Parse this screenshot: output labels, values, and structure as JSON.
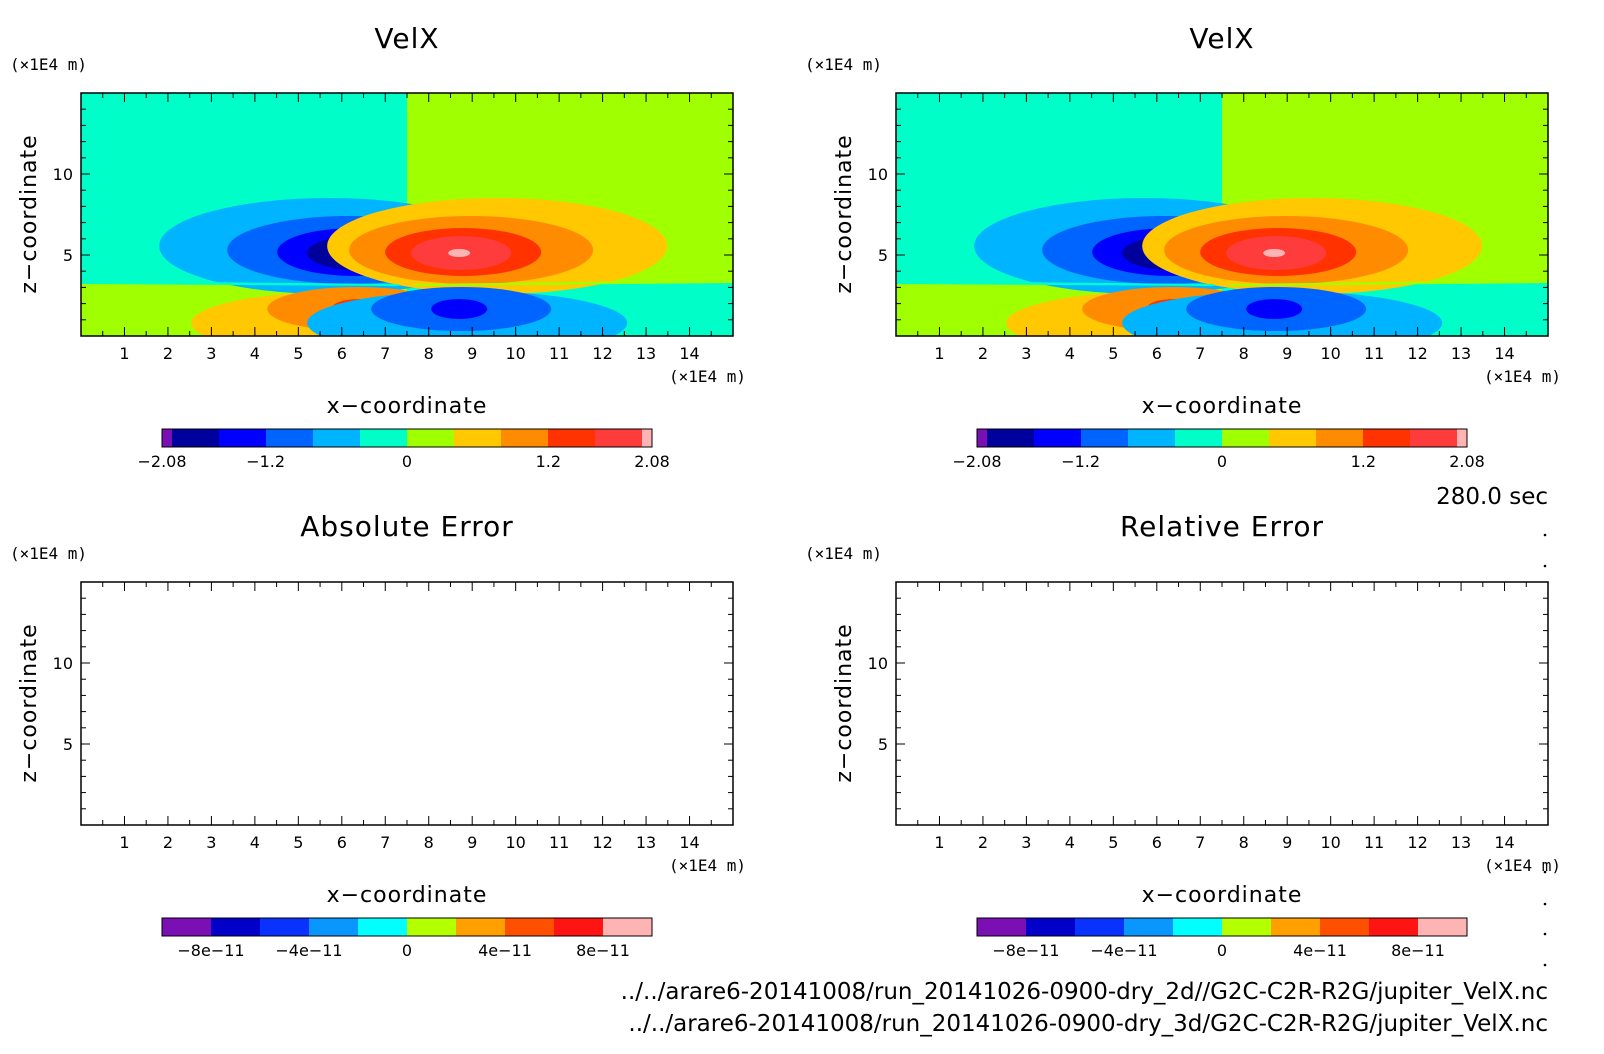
{
  "time_label": "280.0 sec",
  "file_paths": [
    "../../arare6-20141008/run_20141026-0900-dry_2d//G2C-C2R-R2G/jupiter_VelX.nc",
    "../../arare6-20141008/run_20141026-0900-dry_3d/G2C-C2R-R2G/jupiter_VelX.nc"
  ],
  "colors": {
    "velx_levels": [
      "#7a0fb4",
      "#00009c",
      "#0000ff",
      "#0064ff",
      "#00b4ff",
      "#00ffc8",
      "#a0ff00",
      "#ffc800",
      "#ff8c00",
      "#ff3200",
      "#ff3c3c",
      "#ffb4b4"
    ],
    "error_levels": [
      "#7a0fb4",
      "#0000c8",
      "#0a32ff",
      "#0a96ff",
      "#00ffff",
      "#b4ff00",
      "#ffa000",
      "#ff5000",
      "#ff1414",
      "#ffb4b4"
    ]
  },
  "chart_data": [
    {
      "type": "heatmap",
      "title": "VelX",
      "xlabel": "x−coordinate",
      "ylabel": "z−coordinate",
      "x_unit": "(×1E4 m)",
      "y_unit": "(×1E4 m)",
      "xlim": [
        0,
        15
      ],
      "ylim": [
        0,
        15
      ],
      "x_ticks": [
        1,
        2,
        3,
        4,
        5,
        6,
        7,
        8,
        9,
        10,
        11,
        12,
        13,
        14
      ],
      "y_ticks": [
        5,
        10
      ],
      "colorbar_ticks": [
        "−2.08",
        "−1.2",
        "0",
        "1.2",
        "2.08"
      ],
      "colorbar_range": [
        -2.08,
        2.08
      ],
      "features": [
        {
          "x": 6.4,
          "z": 4.2,
          "min": -2.08
        },
        {
          "x": 8.7,
          "z": 4.2,
          "max": 2.08
        },
        {
          "x": 6.4,
          "z": 1.8,
          "max": 1.5
        },
        {
          "x": 8.7,
          "z": 1.8,
          "min": -1.5
        }
      ]
    },
    {
      "type": "heatmap",
      "title": "VelX",
      "xlabel": "x−coordinate",
      "ylabel": "z−coordinate",
      "x_unit": "(×1E4 m)",
      "y_unit": "(×1E4 m)",
      "xlim": [
        0,
        15
      ],
      "ylim": [
        0,
        15
      ],
      "x_ticks": [
        1,
        2,
        3,
        4,
        5,
        6,
        7,
        8,
        9,
        10,
        11,
        12,
        13,
        14
      ],
      "y_ticks": [
        5,
        10
      ],
      "colorbar_ticks": [
        "−2.08",
        "−1.2",
        "0",
        "1.2",
        "2.08"
      ],
      "colorbar_range": [
        -2.08,
        2.08
      ],
      "features": [
        {
          "x": 6.4,
          "z": 4.2,
          "min": -2.08
        },
        {
          "x": 8.7,
          "z": 4.2,
          "max": 2.08
        },
        {
          "x": 6.4,
          "z": 1.8,
          "max": 1.5
        },
        {
          "x": 8.7,
          "z": 1.8,
          "min": -1.5
        }
      ]
    },
    {
      "type": "heatmap",
      "title": "Absolute Error",
      "xlabel": "x−coordinate",
      "ylabel": "z−coordinate",
      "x_unit": "(×1E4 m)",
      "y_unit": "(×1E4 m)",
      "xlim": [
        0,
        15
      ],
      "ylim": [
        0,
        15
      ],
      "x_ticks": [
        1,
        2,
        3,
        4,
        5,
        6,
        7,
        8,
        9,
        10,
        11,
        12,
        13,
        14
      ],
      "y_ticks": [
        5,
        10
      ],
      "colorbar_ticks": [
        "−8e−11",
        "−4e−11",
        "0",
        "4e−11",
        "8e−11"
      ],
      "colorbar_range": [
        -1e-10,
        1e-10
      ],
      "values": "empty"
    },
    {
      "type": "heatmap",
      "title": "Relative Error",
      "xlabel": "x−coordinate",
      "ylabel": "z−coordinate",
      "x_unit": "(×1E4 m)",
      "y_unit": "(×1E4 m)",
      "xlim": [
        0,
        15
      ],
      "ylim": [
        0,
        15
      ],
      "x_ticks": [
        1,
        2,
        3,
        4,
        5,
        6,
        7,
        8,
        9,
        10,
        11,
        12,
        13,
        14
      ],
      "y_ticks": [
        5,
        10
      ],
      "colorbar_ticks": [
        "−8e−11",
        "−4e−11",
        "0",
        "4e−11",
        "8e−11"
      ],
      "colorbar_range": [
        -1e-10,
        1e-10
      ],
      "values": "empty"
    }
  ]
}
